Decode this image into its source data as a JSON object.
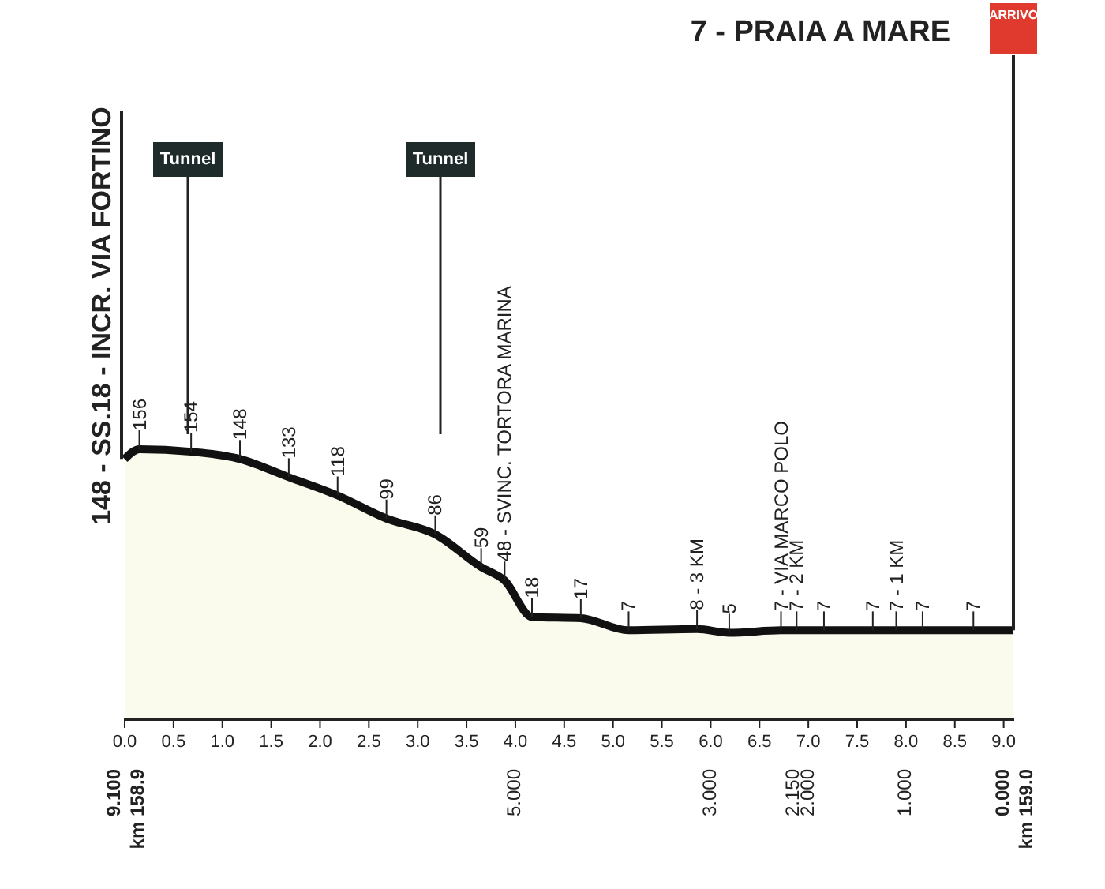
{
  "chart_data": {
    "type": "area",
    "color": "#f8f8e6",
    "tick_labels": "x",
    "x": [
      0,
      0.15,
      0.68,
      1.18,
      1.68,
      2.18,
      2.68,
      3.18,
      3.65,
      3.89,
      4.17,
      4.67,
      5.16,
      5.86,
      6.19,
      6.72,
      6.88,
      7.16,
      7.66,
      7.9,
      8.17,
      8.69,
      9.1
    ],
    "values": [
      148,
      156,
      154,
      148,
      133,
      118,
      99,
      86,
      59,
      48,
      18,
      17,
      7,
      8,
      5,
      7,
      7,
      7,
      7,
      7,
      7,
      7,
      7
    ],
    "value_labels": [
      "148 - SS.18 - INCR. VIA FORTINO",
      "156",
      "154",
      "148",
      "133",
      "118",
      "99",
      "86",
      "59",
      "48 - SVINC. TORTORA MARINA",
      "18",
      "17",
      "7",
      "8 - 3 KM",
      "5",
      "7 - VIA MARCO POLO",
      "7 - 2 KM",
      "7",
      "7",
      "7 - 1 KM",
      "7",
      "7",
      null
    ],
    "xlim": [
      0,
      9.1
    ],
    "xticks": [
      {
        "value": 0,
        "label": "0.0"
      },
      0.5,
      {
        "value": 1,
        "label": "1.0"
      },
      1.5,
      {
        "value": 2,
        "label": "2.0"
      },
      2.5,
      {
        "value": 3,
        "label": "3.0"
      },
      3.5,
      {
        "value": 4,
        "label": "4.0"
      },
      4.5,
      {
        "value": 5,
        "label": "5.0"
      },
      5.5,
      {
        "value": 6,
        "label": "6.0"
      },
      6.5,
      {
        "value": 7,
        "label": "7.0"
      },
      7.5,
      {
        "value": 8,
        "label": "8.0"
      },
      8.5,
      {
        "value": 9,
        "label": "9.0"
      }
    ],
    "annotations": [
      "Tunnel",
      "Tunnel",
      "ARRIVO",
      "7 - PRAIA A MARE",
      "9.100",
      "km 158.9",
      "5.000",
      "3.000",
      "2.150",
      "2.000",
      "1.000",
      "0.000",
      "km 159.0"
    ]
  }
}
